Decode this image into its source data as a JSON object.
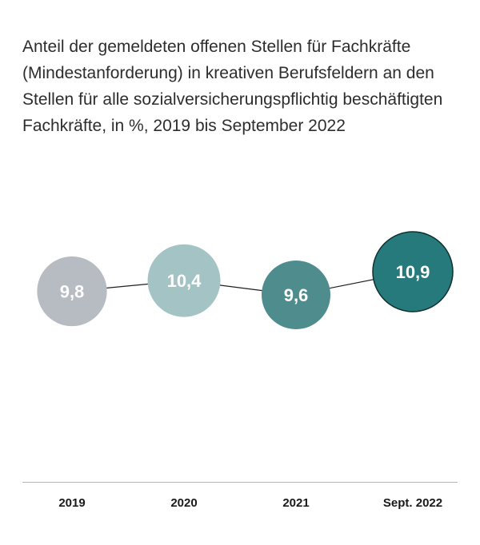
{
  "title": "Anteil der gemeldeten offenen Stellen für Fachkräfte (Mindestanforderung) in kreativen Berufsfeldern an den Stellen für alle sozialversicherungspflichtig beschäftigten Fachkräfte, in %, 2019 bis September 2022",
  "chart_data": {
    "type": "line",
    "title": "Anteil der gemeldeten offenen Stellen für Fachkräfte (Mindestanforderung) in kreativen Berufsfeldern an den Stellen für alle sozialversicherungspflichtig beschäftigten Fachkräfte, in %, 2019 bis September 2022",
    "categories": [
      "2019",
      "2020",
      "2021",
      "Sept. 2022"
    ],
    "series": [
      {
        "values": [
          9.8,
          10.4,
          9.6,
          10.9
        ],
        "labels": [
          "9,8",
          "10,4",
          "9,6",
          "10,9"
        ],
        "colors": [
          "#b7bcc2",
          "#a3c3c4",
          "#4e8c8e",
          "#267a7c"
        ]
      }
    ],
    "marker": "bubble",
    "bubble_size_scales_with_value": true,
    "highlight_last_point": true,
    "xlabel": "",
    "ylabel": "",
    "grid": false,
    "axis_line_color": "#b5b5b5",
    "connector_color": "#1e1e1e"
  }
}
